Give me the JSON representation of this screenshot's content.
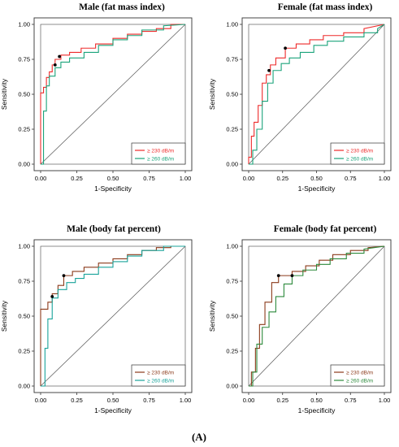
{
  "figure_label": "(A)",
  "colors": {
    "red": "#ee2a2a",
    "green": "#1aa37a",
    "brown": "#8b3a1a",
    "teal": "#19a39a",
    "dark_green": "#2d8a3c"
  },
  "chart_data": [
    {
      "type": "line",
      "title": "Male (fat mass index)",
      "xlabel": "1-Specificity",
      "ylabel": "Sensitivity",
      "xlim": [
        0,
        1
      ],
      "ylim": [
        0,
        1
      ],
      "ticks": [
        "0.00",
        "0.25",
        "0.50",
        "0.75",
        "1.00"
      ],
      "legend_position": "bottom-right",
      "series": [
        {
          "name": "≥ 230 dB/m",
          "color": "#ee2a2a",
          "x": [
            0,
            0,
            0.02,
            0.02,
            0.04,
            0.04,
            0.06,
            0.06,
            0.08,
            0.08,
            0.1,
            0.1,
            0.14,
            0.14,
            0.2,
            0.2,
            0.28,
            0.28,
            0.38,
            0.38,
            0.5,
            0.5,
            0.6,
            0.6,
            0.7,
            0.7,
            0.8,
            0.8,
            0.9,
            0.9,
            1.0
          ],
          "y": [
            0,
            0.51,
            0.51,
            0.55,
            0.55,
            0.62,
            0.62,
            0.66,
            0.66,
            0.71,
            0.71,
            0.75,
            0.75,
            0.78,
            0.78,
            0.8,
            0.8,
            0.83,
            0.83,
            0.86,
            0.86,
            0.9,
            0.9,
            0.93,
            0.93,
            0.95,
            0.95,
            0.97,
            0.97,
            1.0,
            1.0
          ]
        },
        {
          "name": "≥ 260 dB/m",
          "color": "#1aa37a",
          "x": [
            0,
            0.02,
            0.02,
            0.04,
            0.04,
            0.06,
            0.06,
            0.1,
            0.1,
            0.14,
            0.14,
            0.2,
            0.2,
            0.3,
            0.3,
            0.4,
            0.4,
            0.5,
            0.5,
            0.6,
            0.6,
            0.7,
            0.7,
            0.85,
            0.85,
            1.0
          ],
          "y": [
            0,
            0,
            0.38,
            0.38,
            0.56,
            0.56,
            0.63,
            0.63,
            0.69,
            0.69,
            0.73,
            0.73,
            0.76,
            0.76,
            0.8,
            0.8,
            0.85,
            0.85,
            0.89,
            0.89,
            0.92,
            0.92,
            0.96,
            0.96,
            0.99,
            1.0
          ]
        }
      ],
      "cutoff_points": [
        {
          "x": 0.13,
          "y": 0.77
        },
        {
          "x": 0.1,
          "y": 0.71
        }
      ]
    },
    {
      "type": "line",
      "title": "Female (fat mass index)",
      "xlabel": "1-Specificity",
      "ylabel": "Sensitivity",
      "xlim": [
        0,
        1
      ],
      "ylim": [
        0,
        1
      ],
      "ticks": [
        "0.00",
        "0.25",
        "0.50",
        "0.75",
        "1.00"
      ],
      "legend_position": "bottom-right",
      "series": [
        {
          "name": "≥ 230 dB/m",
          "color": "#ee2a2a",
          "x": [
            0,
            0,
            0.02,
            0.02,
            0.04,
            0.04,
            0.07,
            0.07,
            0.1,
            0.1,
            0.13,
            0.13,
            0.16,
            0.16,
            0.2,
            0.2,
            0.27,
            0.27,
            0.35,
            0.35,
            0.45,
            0.45,
            0.55,
            0.55,
            0.7,
            0.7,
            0.85,
            0.85,
            1.0
          ],
          "y": [
            0,
            0.05,
            0.05,
            0.2,
            0.2,
            0.3,
            0.3,
            0.42,
            0.42,
            0.58,
            0.58,
            0.64,
            0.64,
            0.71,
            0.71,
            0.76,
            0.76,
            0.83,
            0.83,
            0.86,
            0.86,
            0.89,
            0.89,
            0.92,
            0.92,
            0.94,
            0.94,
            0.97,
            1.0
          ]
        },
        {
          "name": "≥ 260 dB/m",
          "color": "#1aa37a",
          "x": [
            0,
            0.03,
            0.03,
            0.06,
            0.06,
            0.1,
            0.1,
            0.14,
            0.14,
            0.18,
            0.18,
            0.24,
            0.24,
            0.3,
            0.3,
            0.38,
            0.38,
            0.48,
            0.48,
            0.58,
            0.58,
            0.7,
            0.7,
            0.85,
            0.85,
            0.95,
            0.95,
            1.0
          ],
          "y": [
            0,
            0,
            0.1,
            0.1,
            0.25,
            0.25,
            0.45,
            0.45,
            0.58,
            0.58,
            0.67,
            0.67,
            0.72,
            0.72,
            0.76,
            0.76,
            0.8,
            0.8,
            0.85,
            0.85,
            0.88,
            0.88,
            0.91,
            0.91,
            0.94,
            0.94,
            0.97,
            1.0
          ]
        }
      ],
      "cutoff_points": [
        {
          "x": 0.27,
          "y": 0.83
        },
        {
          "x": 0.15,
          "y": 0.67
        }
      ]
    },
    {
      "type": "line",
      "title": "Male (body fat percent)",
      "xlabel": "1-Specificity",
      "ylabel": "Sensitivity",
      "xlim": [
        0,
        1
      ],
      "ylim": [
        0,
        1
      ],
      "ticks": [
        "0.00",
        "0.25",
        "0.50",
        "0.75",
        "1.00"
      ],
      "legend_position": "bottom-right",
      "series": [
        {
          "name": "≥ 230 dB/m",
          "color": "#8b3a1a",
          "x": [
            0,
            0,
            0.05,
            0.05,
            0.08,
            0.08,
            0.12,
            0.12,
            0.16,
            0.16,
            0.22,
            0.22,
            0.3,
            0.3,
            0.4,
            0.4,
            0.5,
            0.5,
            0.6,
            0.6,
            0.7,
            0.7,
            0.8,
            0.8,
            0.9,
            0.9,
            1.0
          ],
          "y": [
            0,
            0.55,
            0.55,
            0.6,
            0.6,
            0.66,
            0.66,
            0.72,
            0.72,
            0.79,
            0.79,
            0.82,
            0.82,
            0.85,
            0.85,
            0.88,
            0.88,
            0.91,
            0.91,
            0.94,
            0.94,
            0.97,
            0.97,
            0.99,
            0.99,
            1.0,
            1.0
          ]
        },
        {
          "name": "≥ 260 dB/m",
          "color": "#19a39a",
          "x": [
            0,
            0.03,
            0.03,
            0.05,
            0.05,
            0.08,
            0.08,
            0.12,
            0.12,
            0.18,
            0.18,
            0.24,
            0.24,
            0.3,
            0.3,
            0.4,
            0.4,
            0.5,
            0.5,
            0.6,
            0.6,
            0.7,
            0.7,
            0.85,
            0.85,
            1.0
          ],
          "y": [
            0,
            0,
            0.27,
            0.27,
            0.48,
            0.48,
            0.63,
            0.63,
            0.69,
            0.69,
            0.74,
            0.74,
            0.77,
            0.77,
            0.8,
            0.8,
            0.85,
            0.85,
            0.89,
            0.89,
            0.93,
            0.93,
            0.97,
            0.97,
            1.0,
            1.0
          ]
        }
      ],
      "cutoff_points": [
        {
          "x": 0.16,
          "y": 0.79
        },
        {
          "x": 0.08,
          "y": 0.64
        }
      ]
    },
    {
      "type": "line",
      "title": "Female (body fat percent)",
      "xlabel": "1-Specificity",
      "ylabel": "Sensitivity",
      "xlim": [
        0,
        1
      ],
      "ylim": [
        0,
        1
      ],
      "ticks": [
        "0.00",
        "0.25",
        "0.50",
        "0.75",
        "1.00"
      ],
      "legend_position": "bottom-right",
      "series": [
        {
          "name": "≥ 230 dB/m",
          "color": "#8b3a1a",
          "x": [
            0,
            0.02,
            0.02,
            0.05,
            0.05,
            0.08,
            0.08,
            0.12,
            0.12,
            0.17,
            0.17,
            0.22,
            0.22,
            0.32,
            0.32,
            0.42,
            0.42,
            0.52,
            0.52,
            0.62,
            0.62,
            0.75,
            0.75,
            0.88,
            0.88,
            1.0
          ],
          "y": [
            0,
            0,
            0.1,
            0.1,
            0.27,
            0.27,
            0.44,
            0.44,
            0.6,
            0.6,
            0.74,
            0.74,
            0.79,
            0.79,
            0.82,
            0.82,
            0.86,
            0.86,
            0.9,
            0.9,
            0.94,
            0.94,
            0.97,
            0.97,
            0.99,
            1.0
          ]
        },
        {
          "name": "≥ 260 dB/m",
          "color": "#2d8a3c",
          "x": [
            0,
            0.03,
            0.03,
            0.06,
            0.06,
            0.1,
            0.1,
            0.15,
            0.15,
            0.2,
            0.2,
            0.26,
            0.26,
            0.32,
            0.32,
            0.4,
            0.4,
            0.5,
            0.5,
            0.6,
            0.6,
            0.72,
            0.72,
            0.85,
            0.85,
            1.0
          ],
          "y": [
            0,
            0,
            0.1,
            0.1,
            0.3,
            0.3,
            0.42,
            0.42,
            0.53,
            0.53,
            0.64,
            0.64,
            0.73,
            0.73,
            0.79,
            0.79,
            0.83,
            0.83,
            0.87,
            0.87,
            0.91,
            0.91,
            0.95,
            0.95,
            0.98,
            1.0
          ]
        }
      ],
      "cutoff_points": [
        {
          "x": 0.22,
          "y": 0.79
        },
        {
          "x": 0.32,
          "y": 0.79
        }
      ]
    }
  ]
}
